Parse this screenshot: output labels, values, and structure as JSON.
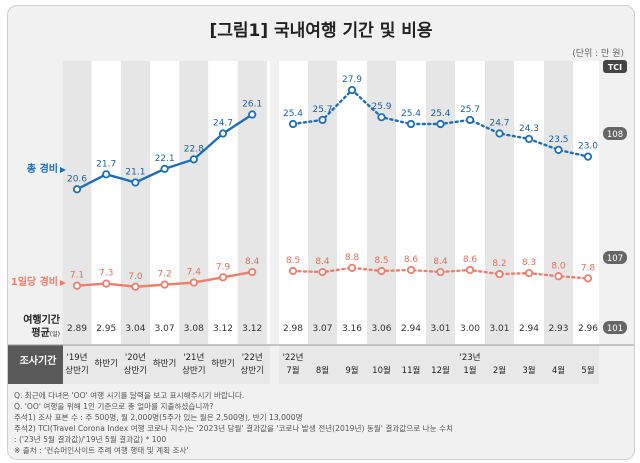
{
  "title": "[그림1] 국내여행 기간 및 비용",
  "unit_note": "(단위 : 만 원)",
  "tci_badge": "TCI",
  "row_labels": {
    "total_cost": "총 경비",
    "daily_cost": "1일당 경비",
    "avg_days_line1": "여행기간",
    "avg_days_line2": "평균",
    "avg_days_unit": "(일)",
    "survey_period": "조사기간"
  },
  "left_periods": [
    {
      "line1": "'19년",
      "line2": "상반기"
    },
    {
      "line1": "",
      "line2": "하반기"
    },
    {
      "line1": "'20년",
      "line2": "상반기"
    },
    {
      "line1": "",
      "line2": "하반기"
    },
    {
      "line1": "'21년",
      "line2": "상반기"
    },
    {
      "line1": "",
      "line2": "하반기"
    },
    {
      "line1": "'22년",
      "line2": "상반기"
    }
  ],
  "right_periods": [
    {
      "line1": "'22년",
      "line2": "7월"
    },
    {
      "line1": "",
      "line2": "8월"
    },
    {
      "line1": "",
      "line2": "9월"
    },
    {
      "line1": "",
      "line2": "10월"
    },
    {
      "line1": "",
      "line2": "11월"
    },
    {
      "line1": "",
      "line2": "12월"
    },
    {
      "line1": "'23년",
      "line2": "1월"
    },
    {
      "line1": "",
      "line2": "2월"
    },
    {
      "line1": "",
      "line2": "3월"
    },
    {
      "line1": "",
      "line2": "4월"
    },
    {
      "line1": "",
      "line2": "5월"
    }
  ],
  "chart_data": {
    "type": "line",
    "series": [
      {
        "name": "총 경비",
        "key": "total_cost",
        "color": "#1e6fb8",
        "half_year": [
          20.6,
          21.7,
          21.1,
          22.1,
          22.8,
          24.7,
          26.1
        ],
        "monthly": [
          25.4,
          25.7,
          27.9,
          25.9,
          25.4,
          25.4,
          25.7,
          24.7,
          24.3,
          23.5,
          23.0
        ],
        "tci": "108"
      },
      {
        "name": "1일당 경비",
        "key": "daily_cost",
        "color": "#ef7e6c",
        "half_year": [
          7.1,
          7.3,
          7.0,
          7.2,
          7.4,
          7.9,
          8.4
        ],
        "monthly": [
          8.5,
          8.4,
          8.8,
          8.5,
          8.6,
          8.4,
          8.6,
          8.2,
          8.3,
          8.0,
          7.8
        ],
        "tci": "107"
      }
    ],
    "avg_days": {
      "half_year": [
        "2.89",
        "2.95",
        "3.04",
        "3.07",
        "3.08",
        "3.12",
        "3.12"
      ],
      "monthly": [
        "2.98",
        "3.07",
        "3.16",
        "3.06",
        "2.94",
        "3.01",
        "3.00",
        "3.01",
        "2.94",
        "2.93",
        "2.96"
      ],
      "tci": "101"
    }
  },
  "footnotes": [
    "Q. 최근에 다녀온 'OO' 여행 시기를 달력을 보고 표시해주시기 바랍니다.",
    "Q. 'OO' 여행을 위해 1인 기준으로 총 얼마를 지출하셨습니까?",
    "주석1) 조사 표본 수 : 주 500명, 월 2,000명(5주가 있는 월은 2,500명), 반기 13,000명",
    "주석2) TCI(Travel Corona Index 여행 코로나 지수)는 '2023년 당월' 결과값을 '코로나 발생 전년(2019년) 동월' 결과값으로 나눈 수치",
    "       : ('23년 5월 결과값)/'19년 5월 결과값) * 100",
    "※ 출처 : '컨슈머인사이트 주례 여행 행태 및 계획 조사'"
  ],
  "colors": {
    "total": "#1e6fb8",
    "daily": "#ef7e6c",
    "panel": "#ffffff",
    "shade": "#e6e6e6",
    "badge": "#666666",
    "frame_bg": "#f1f1f1"
  }
}
